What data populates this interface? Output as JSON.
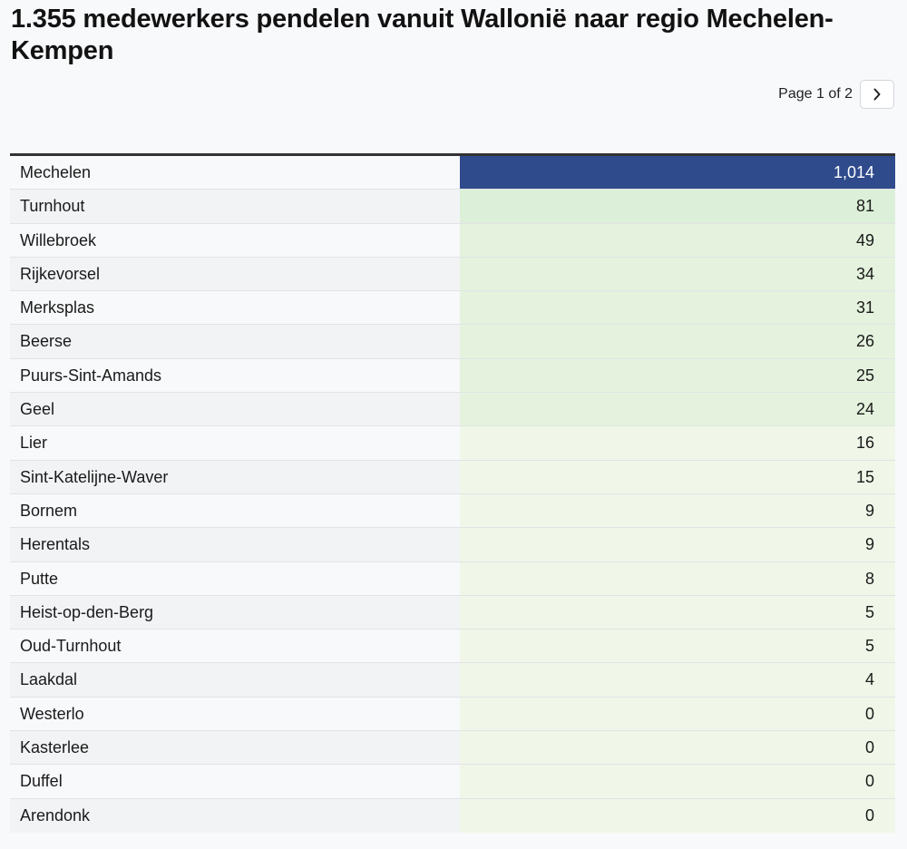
{
  "title": "1.355 medewerkers pendelen vanuit Wallonië naar regio Mechelen-Kempen",
  "pagination": {
    "label": "Page 1 of 2"
  },
  "colors": {
    "top_bar": "#2f4b8c",
    "cell_high": "#dcefd8",
    "cell_low": "#f0f7e8",
    "header_rule": "#333333"
  },
  "table": {
    "rows": [
      {
        "name": "Mechelen",
        "value": "1,014",
        "num": 1014
      },
      {
        "name": "Turnhout",
        "value": "81",
        "num": 81
      },
      {
        "name": "Willebroek",
        "value": "49",
        "num": 49
      },
      {
        "name": "Rijkevorsel",
        "value": "34",
        "num": 34
      },
      {
        "name": "Merksplas",
        "value": "31",
        "num": 31
      },
      {
        "name": "Beerse",
        "value": "26",
        "num": 26
      },
      {
        "name": "Puurs-Sint-Amands",
        "value": "25",
        "num": 25
      },
      {
        "name": "Geel",
        "value": "24",
        "num": 24
      },
      {
        "name": "Lier",
        "value": "16",
        "num": 16
      },
      {
        "name": "Sint-Katelijne-Waver",
        "value": "15",
        "num": 15
      },
      {
        "name": "Bornem",
        "value": "9",
        "num": 9
      },
      {
        "name": "Herentals",
        "value": "9",
        "num": 9
      },
      {
        "name": "Putte",
        "value": "8",
        "num": 8
      },
      {
        "name": "Heist-op-den-Berg",
        "value": "5",
        "num": 5
      },
      {
        "name": "Oud-Turnhout",
        "value": "5",
        "num": 5
      },
      {
        "name": "Laakdal",
        "value": "4",
        "num": 4
      },
      {
        "name": "Westerlo",
        "value": "0",
        "num": 0
      },
      {
        "name": "Kasterlee",
        "value": "0",
        "num": 0
      },
      {
        "name": "Duffel",
        "value": "0",
        "num": 0
      },
      {
        "name": "Arendonk",
        "value": "0",
        "num": 0
      }
    ]
  }
}
